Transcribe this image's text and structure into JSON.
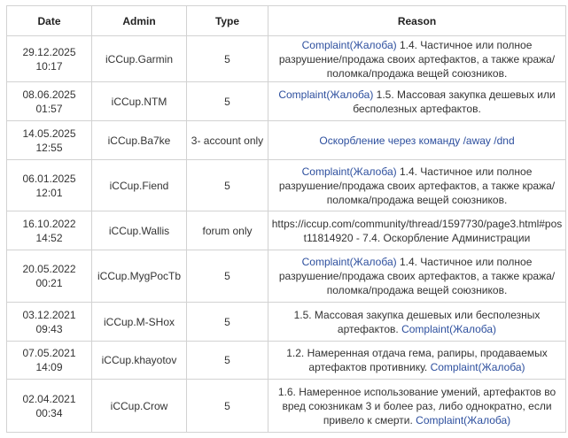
{
  "colors": {
    "link": "#2d4f9e",
    "text": "#333333",
    "border": "#d2d2d2"
  },
  "headers": [
    "Date",
    "Admin",
    "Type",
    "Reason"
  ],
  "rows": [
    {
      "date": "29.12.2025",
      "time": "10:17",
      "admin": "iCCup.Garmin",
      "type": "5",
      "reason": [
        {
          "text": "Complaint(Жалоба)",
          "link": true
        },
        {
          "text": " 1.4. Частичное или полное разрушение/продажа своих артефактов, а также кража/поломка/продажа вещей союзников.",
          "link": false
        }
      ]
    },
    {
      "date": "08.06.2025",
      "time": "01:57",
      "admin": "iCCup.NTM",
      "type": "5",
      "reason": [
        {
          "text": "Complaint(Жалоба)",
          "link": true
        },
        {
          "text": " 1.5. Массовая закупка дешевых или бесполезных артефактов.",
          "link": false
        }
      ]
    },
    {
      "date": "14.05.2025",
      "time": "12:55",
      "admin": "iCCup.Ba7ke",
      "type": "3- account only",
      "reason": [
        {
          "text": "Оскорбление через команду /away /dnd",
          "link": true
        }
      ]
    },
    {
      "date": "06.01.2025",
      "time": "12:01",
      "admin": "iCCup.Fiend",
      "type": "5",
      "reason": [
        {
          "text": "Complaint(Жалоба)",
          "link": true
        },
        {
          "text": " 1.4. Частичное или полное разрушение/продажа своих артефактов, а также кража/поломка/продажа вещей союзников.",
          "link": false
        }
      ]
    },
    {
      "date": "16.10.2022",
      "time": "14:52",
      "admin": "iCCup.Wallis",
      "type": "forum only",
      "reason": [
        {
          "text": "https://iccup.com/community/thread/1597730/page3.html#post11814920 - 7.4. Оскорбление Администрации",
          "link": false
        }
      ]
    },
    {
      "date": "20.05.2022",
      "time": "00:21",
      "admin": "iCCup.MygPocTb",
      "type": "5",
      "reason": [
        {
          "text": "Complaint(Жалоба)",
          "link": true
        },
        {
          "text": " 1.4. Частичное или полное разрушение/продажа своих артефактов, а также кража/поломка/продажа вещей союзников.",
          "link": false
        }
      ]
    },
    {
      "date": "03.12.2021",
      "time": "09:43",
      "admin": "iCCup.M-SHox",
      "type": "5",
      "reason": [
        {
          "text": "1.5. Массовая закупка дешевых или бесполезных артефактов. ",
          "link": false
        },
        {
          "text": "Complaint(Жалоба)",
          "link": true
        }
      ]
    },
    {
      "date": "07.05.2021",
      "time": "14:09",
      "admin": "iCCup.khayotov",
      "type": "5",
      "reason": [
        {
          "text": "1.2. Намеренная отдача гема, рапиры, продаваемых артефактов противнику. ",
          "link": false
        },
        {
          "text": "Complaint(Жалоба)",
          "link": true
        }
      ]
    },
    {
      "date": "02.04.2021",
      "time": "00:34",
      "admin": "iCCup.Crow",
      "type": "5",
      "reason": [
        {
          "text": "1.6. Намеренное использование умений, артефактов во вред союзникам 3 и более раз, либо однократно, если привело к смерти. ",
          "link": false
        },
        {
          "text": "Complaint(Жалоба)",
          "link": true
        }
      ]
    }
  ]
}
